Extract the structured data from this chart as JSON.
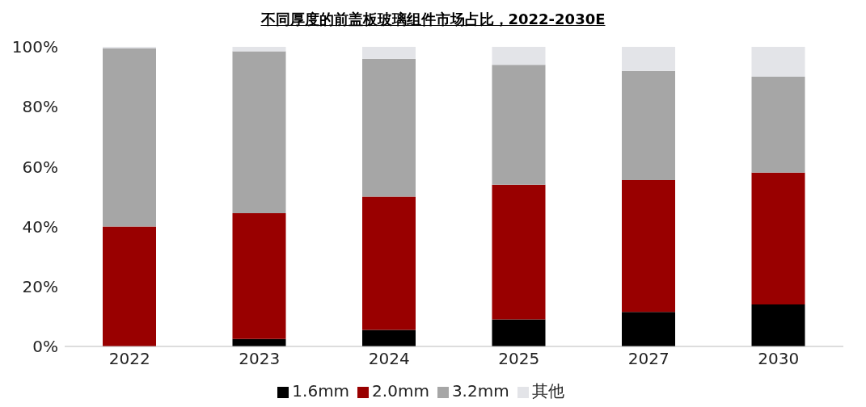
{
  "chart_data": {
    "type": "bar",
    "title": "不同厚度的前盖板玻璃组件市场占比，2022-2030E",
    "categories": [
      "2022",
      "2023",
      "2024",
      "2025",
      "2027",
      "2030"
    ],
    "stacked": true,
    "series": [
      {
        "name": "1.6mm",
        "color": "#000000",
        "values": [
          0,
          2.5,
          5.5,
          9,
          11.5,
          14
        ]
      },
      {
        "name": "2.0mm",
        "color": "#990000",
        "values": [
          40,
          42,
          44.5,
          45,
          44,
          44
        ]
      },
      {
        "name": "3.2mm",
        "color": "#a6a6a6",
        "values": [
          59.5,
          54,
          46,
          40,
          36.5,
          32
        ]
      },
      {
        "name": "其他",
        "color": "#e3e4e8",
        "values": [
          0.5,
          1.5,
          4,
          6,
          8,
          10
        ]
      }
    ],
    "ylim": [
      0,
      100
    ],
    "yticks": [
      {
        "value": 0,
        "label": "0%"
      },
      {
        "value": 20,
        "label": "20%"
      },
      {
        "value": 40,
        "label": "40%"
      },
      {
        "value": 60,
        "label": "60%"
      },
      {
        "value": 80,
        "label": "80%"
      },
      {
        "value": 100,
        "label": "100%"
      }
    ],
    "grid": false,
    "legend": "bottom"
  }
}
